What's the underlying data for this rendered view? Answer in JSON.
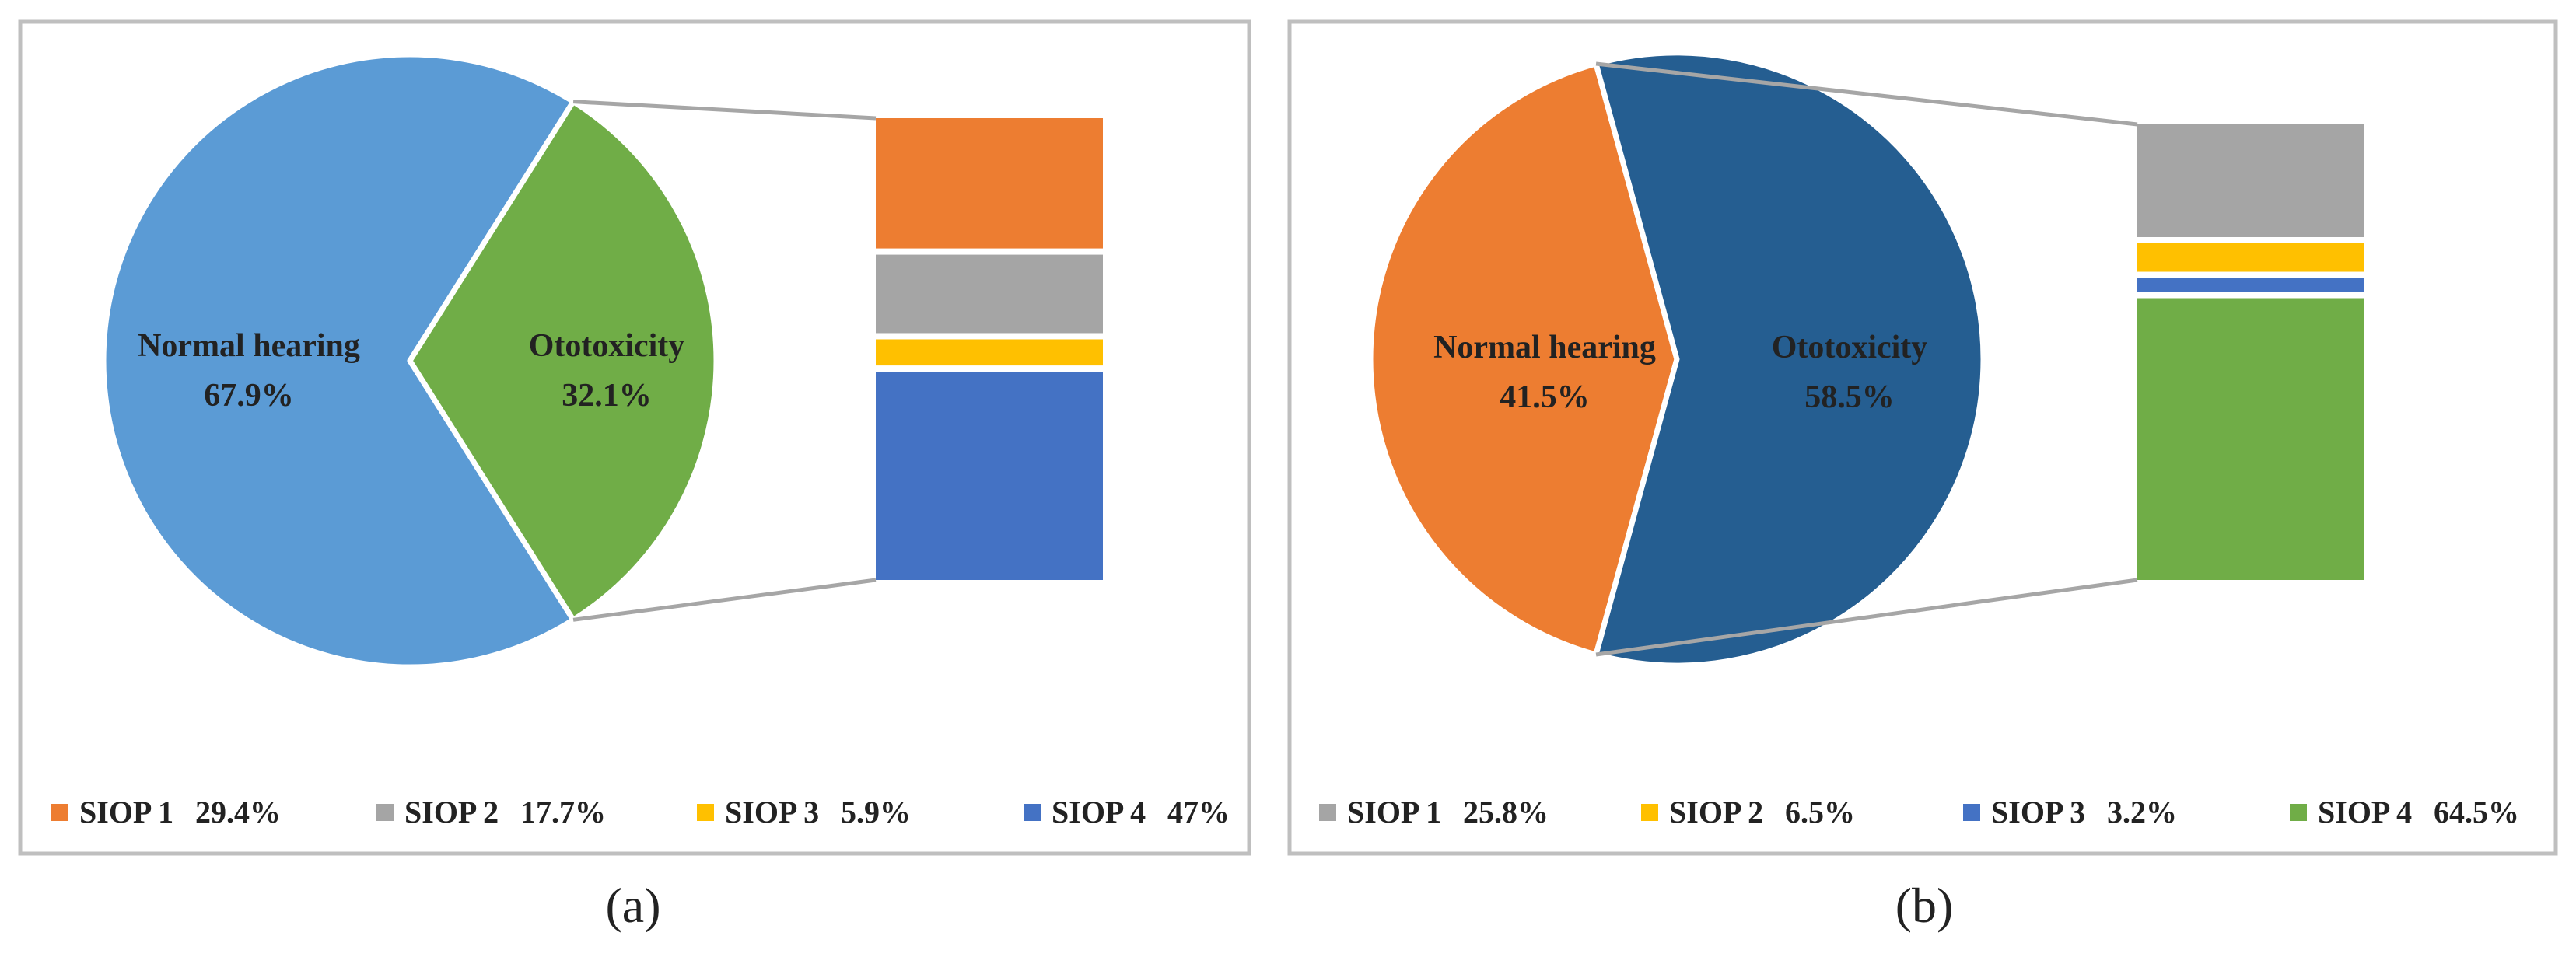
{
  "figure": {
    "panels": [
      "a",
      "b"
    ]
  },
  "chart_data": [
    {
      "type": "pie",
      "panel_label": "(a)",
      "slices": [
        {
          "name": "Normal hearing",
          "value": 67.9,
          "label": "67.9%",
          "color": "#5B9BD5"
        },
        {
          "name": "Ototoxicity",
          "value": 32.1,
          "label": "32.1%",
          "color": "#70AD47"
        }
      ],
      "breakdown_of": "Ototoxicity",
      "breakdown": [
        {
          "name": "SIOP 1",
          "value": 29.4,
          "label": "29.4%",
          "color": "#ED7D31"
        },
        {
          "name": "SIOP 2",
          "value": 17.7,
          "label": "17.7%",
          "color": "#A5A5A5"
        },
        {
          "name": "SIOP 3",
          "value": 5.9,
          "label": "5.9%",
          "color": "#FFC000"
        },
        {
          "name": "SIOP 4",
          "value": 47,
          "label": "47%",
          "color": "#4472C4"
        }
      ],
      "legend_position": "bottom"
    },
    {
      "type": "pie",
      "panel_label": "(b)",
      "slices": [
        {
          "name": "Normal hearing",
          "value": 41.5,
          "label": "41.5%",
          "color": "#ED7D31"
        },
        {
          "name": "Ototoxicity",
          "value": 58.5,
          "label": "58.5%",
          "color": "#255E91"
        }
      ],
      "breakdown_of": "Ototoxicity",
      "breakdown": [
        {
          "name": "SIOP 1",
          "value": 25.8,
          "label": "25.8%",
          "color": "#A5A5A5"
        },
        {
          "name": "SIOP 2",
          "value": 6.5,
          "label": "6.5%",
          "color": "#FFC000"
        },
        {
          "name": "SIOP 3",
          "value": 3.2,
          "label": "3.2%",
          "color": "#4472C4"
        },
        {
          "name": "SIOP 4",
          "value": 64.5,
          "label": "64.5%",
          "color": "#70AD47"
        }
      ],
      "legend_position": "bottom"
    }
  ]
}
